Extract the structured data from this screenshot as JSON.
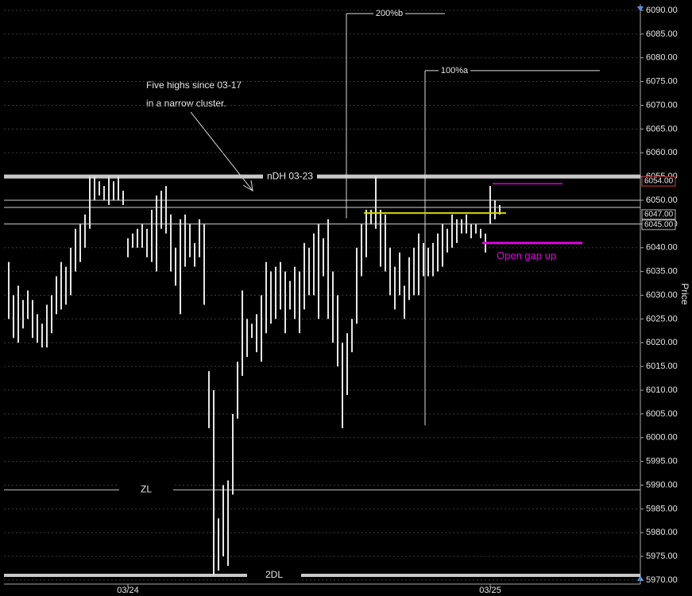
{
  "chart_data": {
    "type": "ohlc",
    "categories": [
      null,
      null,
      null,
      null,
      null,
      null,
      null,
      null,
      null,
      null,
      null,
      null,
      null,
      null,
      null,
      null,
      null,
      null,
      null,
      null,
      null,
      null,
      null,
      null,
      null,
      "03/24",
      null,
      null,
      null,
      null,
      null,
      null,
      null,
      null,
      null,
      null,
      null,
      null,
      null,
      null,
      null,
      null,
      null,
      null,
      null,
      null,
      null,
      null,
      null,
      null,
      null,
      null,
      null,
      null,
      null,
      null,
      null,
      null,
      null,
      null,
      null,
      null,
      null,
      null,
      null,
      null,
      null,
      null,
      null,
      null,
      null,
      null,
      null,
      null,
      null,
      null,
      null,
      null,
      null,
      null,
      null,
      null,
      null,
      null,
      null,
      null,
      null,
      null,
      null,
      null,
      null,
      null,
      null,
      null,
      null,
      null,
      null,
      null,
      null,
      null,
      null,
      "03/25",
      null,
      null
    ],
    "high": [
      6037,
      6030,
      6032,
      6029,
      6031,
      6029,
      6026,
      6024,
      6028,
      6030,
      6034,
      6037,
      6036,
      6040,
      6044,
      6045,
      6047,
      6055,
      6055,
      6054,
      6053,
      6055,
      6054,
      6055,
      6052,
      6042,
      6043,
      6044,
      6045,
      6044,
      6048,
      6051,
      6052,
      6053,
      6047,
      6040,
      6046,
      6047,
      6045,
      6041,
      6046,
      6045,
      6014,
      6010,
      5983,
      5990,
      5991,
      6005,
      6016,
      6031,
      6025,
      6024,
      6026,
      6030,
      6037,
      6035,
      6036,
      6037,
      6035,
      6033,
      6036,
      6035,
      6041,
      6040,
      6043,
      6045,
      6042,
      6046,
      6035,
      6030,
      6020,
      6022,
      6025,
      6040,
      6045,
      6048,
      6048,
      6055,
      6048,
      6047,
      6040,
      6036,
      6039,
      6032,
      6038,
      6040,
      6043,
      6041,
      6040,
      6041,
      6043,
      6045,
      6044,
      6047,
      6046,
      6046,
      6047,
      6045,
      6045,
      6044,
      6043,
      6053,
      6050,
      6049
    ],
    "low": [
      6025,
      6021,
      6020,
      6023,
      6025,
      6021,
      6020,
      6019,
      6019,
      6022,
      6026,
      6027,
      6028,
      6030,
      6035,
      6037,
      6040,
      6044,
      6050,
      6051,
      6050,
      6049,
      6050,
      6050,
      6049,
      6038,
      6040,
      6040,
      6040,
      6038,
      6037,
      6035,
      6044,
      6043,
      6035,
      6032,
      6026,
      6036,
      6038,
      6036,
      6038,
      6028,
      6002,
      5971,
      5972,
      5975,
      5973,
      5988,
      6004,
      6013,
      6017,
      6021,
      6018,
      6016,
      6022,
      6024,
      6025,
      6027,
      6022,
      6027,
      6025,
      6022,
      6027,
      6030,
      6030,
      6025,
      6034,
      6025,
      6020,
      6015,
      6002,
      6009,
      6018,
      6024,
      6034,
      6038,
      6045,
      6044,
      6036,
      6035,
      6030,
      6027,
      6030,
      6025,
      6029,
      6030,
      6030,
      6034,
      6034,
      6034,
      6035,
      6036,
      6039,
      6040,
      6041,
      6043,
      6043,
      6042,
      6043,
      6042,
      6039,
      6045,
      6046,
      6047
    ],
    "color": "#e6e6e6",
    "ylim": [
      5970,
      6090
    ],
    "yticks": [
      {
        "value": 6090,
        "label": "6090.00"
      },
      {
        "value": 6085,
        "label": "6085.00"
      },
      {
        "value": 6080,
        "label": "6080.00"
      },
      {
        "value": 6075,
        "label": "6075.00"
      },
      {
        "value": 6070,
        "label": "6070.00"
      },
      {
        "value": 6065,
        "label": "6065.00"
      },
      {
        "value": 6060,
        "label": "6060.00"
      },
      {
        "value": 6055,
        "label": "6055.00"
      },
      {
        "value": 6050,
        "label": "6050.00"
      },
      {
        "value": 6045,
        "label": "6045.00"
      },
      {
        "value": 6040,
        "label": "6040.00"
      },
      {
        "value": 6035,
        "label": "6035.00"
      },
      {
        "value": 6030,
        "label": "6030.00"
      },
      {
        "value": 6025,
        "label": "6025.00"
      },
      {
        "value": 6020,
        "label": "6020.00"
      },
      {
        "value": 6015,
        "label": "6015.00"
      },
      {
        "value": 6010,
        "label": "6010.00"
      },
      {
        "value": 6005,
        "label": "6005.00"
      },
      {
        "value": 6000,
        "label": "6000.00"
      },
      {
        "value": 5995,
        "label": "5995.00"
      },
      {
        "value": 5990,
        "label": "5990.00"
      },
      {
        "value": 5985,
        "label": "5985.00"
      },
      {
        "value": 5980,
        "label": "5980.00"
      },
      {
        "value": 5975,
        "label": "5975.00"
      },
      {
        "value": 5970,
        "label": "5970.00"
      }
    ],
    "grid": true,
    "y_axis_label": "Price",
    "levels": [
      {
        "label": "nDH 03-23",
        "value": 6055
      },
      {
        "value": 6050
      },
      {
        "value": 6048.5
      },
      {
        "value": 6045
      },
      {
        "label": "ZL",
        "value": 5989
      },
      {
        "label": "2DL",
        "value": 5971
      }
    ],
    "projections": [
      {
        "label": "200%b",
        "value": 6089.3,
        "base": 6046.2
      },
      {
        "label": "100%a",
        "value": 6077.3,
        "base": 6002.6
      }
    ],
    "markers": [
      {
        "value": 6047.3,
        "color": "#d8d800"
      },
      {
        "value": 6053.5,
        "color": "#e000e0"
      },
      {
        "value": 6041,
        "color": "#e000e0",
        "label": "Open gap up"
      }
    ],
    "annotation": [
      "Five highs since 03-17",
      "in a narrow cluster."
    ],
    "price_tags": [
      {
        "value": 6054,
        "label": "6054.00"
      },
      {
        "value": 6047,
        "label": "6047.00"
      },
      {
        "value": 6045,
        "label": "6045.00"
      }
    ]
  }
}
